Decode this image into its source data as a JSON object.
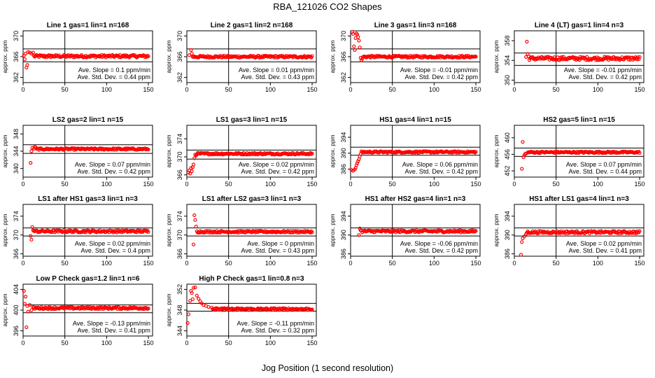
{
  "title": "RBA_121026  CO2 Shapes",
  "xlabel": "Jog Position (1 second resolution)",
  "chart_data": [
    {
      "type": "scatter",
      "title": "Line 1 gas=1 lin=1 n=168",
      "ylabel": "approx. ppm",
      "xlim": [
        0,
        155
      ],
      "ylim": [
        361,
        371
      ],
      "yticks": [
        362,
        366,
        370
      ],
      "xticks": [
        0,
        50,
        100,
        150
      ],
      "hlines": [
        367.5,
        365
      ],
      "vline": 50,
      "annotations": [
        "Ave. Slope = 0.1  ppm/min",
        "Ave. Std. Dev. = 0.44  ppm"
      ],
      "early_points": [
        [
          1,
          366.2
        ],
        [
          2,
          365.5
        ],
        [
          3,
          366.6
        ],
        [
          4,
          363.9
        ],
        [
          5,
          364.4
        ],
        [
          6,
          366.9
        ],
        [
          8,
          366.8
        ],
        [
          10,
          366.6
        ],
        [
          12,
          366.8
        ]
      ],
      "series_level": 366.1,
      "series_noise": 0.25
    },
    {
      "type": "scatter",
      "title": "Line 2 gas=1 lin=2 n=168",
      "ylabel": "approx. ppm",
      "xlim": [
        0,
        155
      ],
      "ylim": [
        361,
        371
      ],
      "yticks": [
        362,
        366,
        370
      ],
      "xticks": [
        0,
        50,
        100,
        150
      ],
      "hlines": [
        367.5,
        365
      ],
      "vline": 50,
      "annotations": [
        "Ave. Slope = 0.01  ppm/min",
        "Ave. Std. Dev. = 0.43  ppm"
      ],
      "early_points": [
        [
          3,
          366.3
        ],
        [
          5,
          367.3
        ],
        [
          6,
          366.6
        ],
        [
          7,
          366.0
        ]
      ],
      "series_level": 366.0,
      "series_noise": 0.2
    },
    {
      "type": "scatter",
      "title": "Line 3 gas=1 lin=3 n=168",
      "ylabel": "approx. ppm",
      "xlim": [
        0,
        155
      ],
      "ylim": [
        361,
        371
      ],
      "yticks": [
        362,
        366,
        370
      ],
      "xticks": [
        0,
        50,
        100,
        150
      ],
      "hlines": [
        367.5,
        365
      ],
      "vline": 50,
      "annotations": [
        "Ave. Slope = -0.01  ppm/min",
        "Ave. Std. Dev. = 0.42  ppm"
      ],
      "early_points": [
        [
          2,
          370.8
        ],
        [
          3,
          370.4
        ],
        [
          4,
          368.0
        ],
        [
          5,
          367.3
        ],
        [
          6,
          369.6
        ],
        [
          7,
          370.5
        ],
        [
          8,
          370.3
        ],
        [
          9,
          369.8
        ],
        [
          10,
          369.1
        ],
        [
          11,
          367.8
        ],
        [
          12,
          365.8
        ],
        [
          13,
          365.3
        ],
        [
          14,
          365.6
        ]
      ],
      "series_level": 366.0,
      "series_noise": 0.2
    },
    {
      "type": "scatter",
      "title": "Line 4 (LT) gas=1 lin=4 n=3",
      "ylabel": "approx. ppm",
      "xlim": [
        0,
        155
      ],
      "ylim": [
        349.5,
        360
      ],
      "yticks": [
        350,
        354,
        358
      ],
      "xticks": [
        0,
        50,
        100,
        150
      ],
      "hlines": [
        355.5,
        353
      ],
      "vline": 50,
      "annotations": [
        "Ave. Slope = -0.01  ppm/min",
        "Ave. Std. Dev. = 0.42  ppm"
      ],
      "early_points": [
        [
          14,
          354.7
        ],
        [
          15,
          357.8
        ],
        [
          16,
          355.3
        ],
        [
          17,
          354.8
        ]
      ],
      "series_level": 354.4,
      "series_noise": 0.35
    },
    {
      "type": "scatter",
      "title": "LS2 gas=2 lin=1 n=15",
      "ylabel": "approx. ppm",
      "xlim": [
        0,
        155
      ],
      "ylim": [
        338,
        350
      ],
      "yticks": [
        340,
        344,
        348
      ],
      "xticks": [
        0,
        50,
        100,
        150
      ],
      "hlines": [
        345.5,
        343.5
      ],
      "vline": 50,
      "annotations": [
        "Ave. Slope = 0.07  ppm/min",
        "Ave. Std. Dev. = 0.42  ppm"
      ],
      "early_points": [
        [
          9,
          341.3
        ],
        [
          10,
          344.0
        ],
        [
          11,
          344.8
        ],
        [
          13,
          344.6
        ],
        [
          14,
          345.0
        ],
        [
          15,
          344.9
        ]
      ],
      "series_level": 344.5,
      "series_noise": 0.2
    },
    {
      "type": "scatter",
      "title": "LS1 gas=3 lin=1 n=15",
      "ylabel": "approx. ppm",
      "xlim": [
        0,
        155
      ],
      "ylim": [
        365.5,
        377
      ],
      "yticks": [
        366,
        370,
        374
      ],
      "xticks": [
        0,
        50,
        100,
        150
      ],
      "hlines": [
        371.5,
        369.5
      ],
      "vline": 50,
      "annotations": [
        "Ave. Slope = 0.02  ppm/min",
        "Ave. Std. Dev. = 0.42  ppm"
      ],
      "early_points": [
        [
          2,
          366.5
        ],
        [
          3,
          367.0
        ],
        [
          4,
          366.3
        ],
        [
          5,
          367.5
        ],
        [
          6,
          366.8
        ],
        [
          7,
          367.7
        ],
        [
          8,
          368.3
        ],
        [
          9,
          369.7
        ],
        [
          10,
          370.5
        ],
        [
          11,
          370.3
        ]
      ],
      "series_level": 370.7,
      "series_noise": 0.2
    },
    {
      "type": "scatter",
      "title": "HS1 gas=4 lin=1 n=15",
      "ylabel": "approx. ppm",
      "xlim": [
        0,
        155
      ],
      "ylim": [
        384,
        397
      ],
      "yticks": [
        386,
        390,
        394
      ],
      "xticks": [
        0,
        50,
        100,
        150
      ],
      "hlines": [
        391.5,
        389.5
      ],
      "vline": 50,
      "annotations": [
        "Ave. Slope = 0.06  ppm/min",
        "Ave. Std. Dev. = 0.42  ppm"
      ],
      "early_points": [
        [
          1,
          385.8
        ],
        [
          3,
          385.6
        ],
        [
          5,
          385.9
        ],
        [
          6,
          386.3
        ],
        [
          7,
          387.0
        ],
        [
          8,
          387.5
        ],
        [
          9,
          388.0
        ],
        [
          10,
          388.5
        ],
        [
          11,
          389.2
        ],
        [
          12,
          389.8
        ]
      ],
      "series_level": 390.3,
      "series_noise": 0.2
    },
    {
      "type": "scatter",
      "title": "HS2 gas=5 lin=1 n=15",
      "ylabel": "approx. ppm",
      "xlim": [
        0,
        155
      ],
      "ylim": [
        450.5,
        463
      ],
      "yticks": [
        452,
        456,
        460
      ],
      "xticks": [
        0,
        50,
        100,
        150
      ],
      "hlines": [
        457.5,
        455.5
      ],
      "vline": 50,
      "annotations": [
        "Ave. Slope = 0.07  ppm/min",
        "Ave. Std. Dev. = 0.44  ppm"
      ],
      "early_points": [
        [
          9,
          452.5
        ],
        [
          10,
          459.0
        ],
        [
          11,
          455.3
        ],
        [
          12,
          455.8
        ],
        [
          13,
          456.1
        ],
        [
          14,
          456.2
        ],
        [
          16,
          456.4
        ]
      ],
      "series_level": 456.5,
      "series_noise": 0.2
    },
    {
      "type": "scatter",
      "title": "LS1 after HS1 gas=3 lin=1 n=3",
      "ylabel": "approx. ppm",
      "xlim": [
        0,
        155
      ],
      "ylim": [
        365.5,
        376.5
      ],
      "yticks": [
        366,
        370,
        374
      ],
      "xticks": [
        0,
        50,
        100,
        150
      ],
      "hlines": [
        371.5,
        369.8
      ],
      "vline": 50,
      "annotations": [
        "Ave. Slope = 0.02  ppm/min",
        "Ave. Std. Dev. = 0.4  ppm"
      ],
      "early_points": [
        [
          9,
          369.8
        ],
        [
          10,
          369.0
        ],
        [
          11,
          371.7
        ],
        [
          12,
          371.0
        ]
      ],
      "series_level": 370.8,
      "series_noise": 0.25
    },
    {
      "type": "scatter",
      "title": "LS1 after LS2 gas=3 lin=1 n=3",
      "ylabel": "approx. ppm",
      "xlim": [
        0,
        155
      ],
      "ylim": [
        365.5,
        376.5
      ],
      "yticks": [
        366,
        370,
        374
      ],
      "xticks": [
        0,
        50,
        100,
        150
      ],
      "hlines": [
        371.5,
        369.8
      ],
      "vline": 50,
      "annotations": [
        "Ave. Slope = 0  ppm/min",
        "Ave. Std. Dev. = 0.43  ppm"
      ],
      "early_points": [
        [
          8,
          368.0
        ],
        [
          9,
          374.2
        ],
        [
          10,
          373.2
        ],
        [
          11,
          371.8
        ],
        [
          12,
          370.8
        ]
      ],
      "series_level": 370.7,
      "series_noise": 0.2
    },
    {
      "type": "scatter",
      "title": "HS1 after HS2 gas=4 lin=1 n=3",
      "ylabel": "approx. ppm",
      "xlim": [
        0,
        155
      ],
      "ylim": [
        385.5,
        396.5
      ],
      "yticks": [
        386,
        390,
        394
      ],
      "xticks": [
        0,
        50,
        100,
        150
      ],
      "hlines": [
        391.5,
        389.8
      ],
      "vline": 50,
      "annotations": [
        "Ave. Slope = -0.06  ppm/min",
        "Ave. Std. Dev. = 0.42  ppm"
      ],
      "early_points": [
        [
          10,
          390.0
        ],
        [
          11,
          391.4
        ],
        [
          12,
          391.0
        ]
      ],
      "series_level": 390.8,
      "series_noise": 0.25
    },
    {
      "type": "scatter",
      "title": "HS1 after LS1 gas=4 lin=1 n=3",
      "ylabel": "approx. ppm",
      "xlim": [
        0,
        155
      ],
      "ylim": [
        385.5,
        396.5
      ],
      "yticks": [
        386,
        390,
        394
      ],
      "xticks": [
        0,
        50,
        100,
        150
      ],
      "hlines": [
        391.5,
        389.8
      ],
      "vline": 50,
      "annotations": [
        "Ave. Slope = 0.02  ppm/min",
        "Ave. Std. Dev. = 0.41  ppm"
      ],
      "early_points": [
        [
          8,
          385.8
        ],
        [
          9,
          388.5
        ],
        [
          10,
          389.3
        ],
        [
          12,
          389.7
        ],
        [
          14,
          390.2
        ]
      ],
      "series_level": 390.6,
      "series_noise": 0.25
    },
    {
      "type": "scatter",
      "title": "Low P Check gas=1.2 lin=1 n=6",
      "ylabel": "approx. ppm",
      "xlim": [
        0,
        155
      ],
      "ylim": [
        395,
        405
      ],
      "yticks": [
        396,
        400,
        404
      ],
      "xticks": [
        0,
        50,
        100,
        150
      ],
      "hlines": [
        401,
        399.5
      ],
      "vline": 50,
      "annotations": [
        "Ave. Slope = -0.13  ppm/min",
        "Ave. Std. Dev. = 0.41  ppm"
      ],
      "early_points": [
        [
          1,
          403.7
        ],
        [
          2,
          401.2
        ],
        [
          3,
          402.6
        ],
        [
          4,
          396.7
        ],
        [
          5,
          400.8
        ],
        [
          6,
          399.7
        ],
        [
          8,
          401.0
        ],
        [
          10,
          400.0
        ],
        [
          12,
          400.6
        ]
      ],
      "series_level": 400.4,
      "series_noise": 0.2
    },
    {
      "type": "scatter",
      "title": "High P Check gas=1 lin=0.8 n=3",
      "ylabel": "approx. ppm",
      "xlim": [
        0,
        155
      ],
      "ylim": [
        343,
        353
      ],
      "yticks": [
        344,
        348,
        352
      ],
      "xticks": [
        0,
        50,
        100,
        150
      ],
      "hlines": [
        349.3,
        347.8
      ],
      "vline": 50,
      "annotations": [
        "Ave. Slope = -0.11  ppm/min",
        "Ave. Std. Dev. = 0.32  ppm"
      ],
      "early_points": [
        [
          1,
          345.5
        ],
        [
          2,
          347.2
        ],
        [
          4,
          349.8
        ],
        [
          5,
          351.7
        ],
        [
          6,
          351.3
        ],
        [
          7,
          350.1
        ],
        [
          8,
          352.3
        ],
        [
          10,
          352.4
        ],
        [
          12,
          350.8
        ],
        [
          14,
          350.2
        ],
        [
          16,
          349.7
        ],
        [
          18,
          349.3
        ],
        [
          20,
          349.0
        ],
        [
          23,
          348.8
        ],
        [
          26,
          348.6
        ],
        [
          30,
          348.5
        ]
      ],
      "series_level": 348.2,
      "series_noise": 0.2
    }
  ]
}
